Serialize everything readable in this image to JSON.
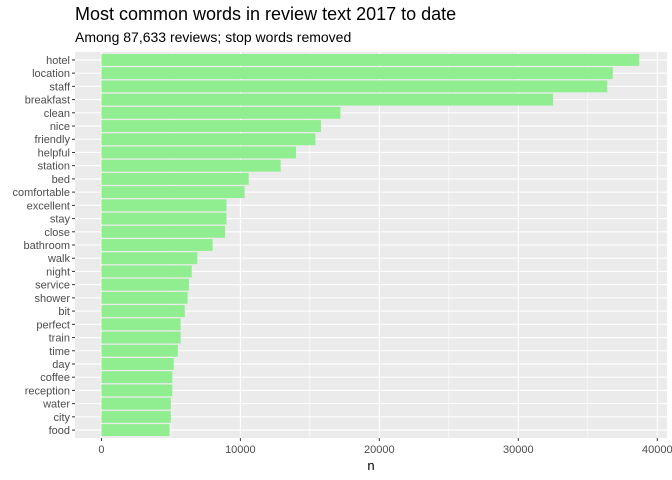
{
  "chart_data": {
    "type": "bar",
    "orientation": "horizontal",
    "title": "Most common words in review text 2017 to date",
    "subtitle": "Among 87,633 reviews; stop words removed",
    "xlabel": "n",
    "ylabel": "",
    "categories": [
      "hotel",
      "location",
      "staff",
      "breakfast",
      "clean",
      "nice",
      "friendly",
      "helpful",
      "station",
      "bed",
      "comfortable",
      "excellent",
      "stay",
      "close",
      "bathroom",
      "walk",
      "night",
      "service",
      "shower",
      "bit",
      "perfect",
      "train",
      "time",
      "day",
      "coffee",
      "reception",
      "water",
      "city",
      "food"
    ],
    "values": [
      38700,
      36800,
      36400,
      32500,
      17200,
      15800,
      15400,
      14000,
      12900,
      10600,
      10300,
      9000,
      9000,
      8900,
      8000,
      6900,
      6500,
      6300,
      6200,
      6000,
      5700,
      5700,
      5500,
      5200,
      5100,
      5100,
      5000,
      5000,
      4900
    ],
    "xlim": [
      -1900,
      40700
    ],
    "xticks": [
      0,
      10000,
      20000,
      30000,
      40000
    ],
    "xtick_labels": [
      "0",
      "10000",
      "20000",
      "30000",
      "40000"
    ],
    "bar_color": "#90EE90",
    "panel_background": "#EBEBEB",
    "grid_color": "#FFFFFF",
    "grid": true
  }
}
